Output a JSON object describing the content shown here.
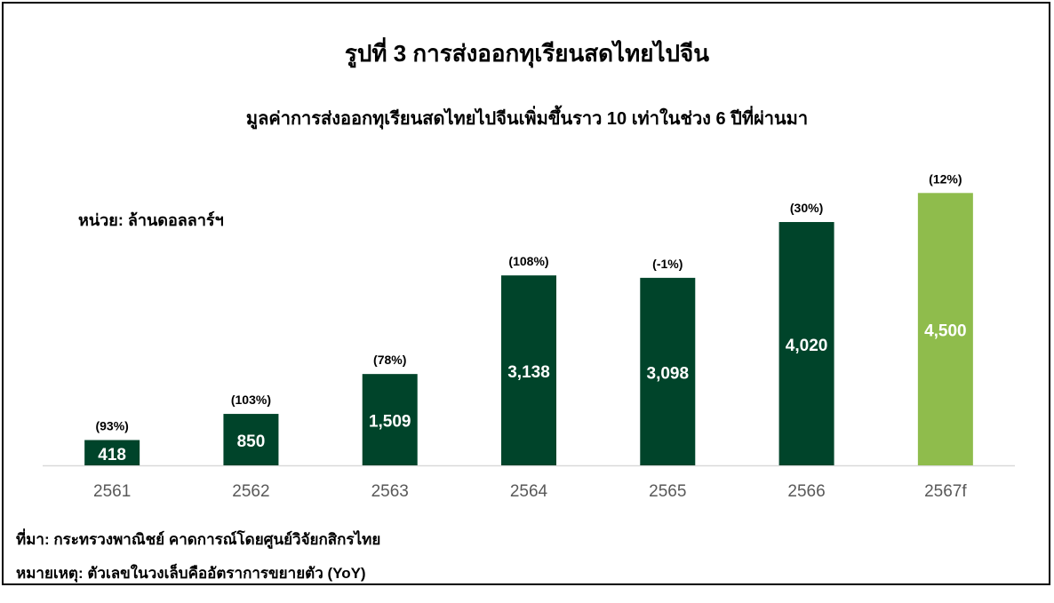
{
  "title": "รูปที่ 3 การส่งออกทุเรียนสดไทยไปจีน",
  "subtitle": "มูลค่าการส่งออกทุเรียนสดไทยไปจีนเพิ่มขึ้นราว  10 เท่าในช่วง 6 ปีที่ผ่านมา",
  "unit_label": "หน่วย: ล้านดอลลาร์ฯ",
  "source": "ที่มา: กระทรวงพาณิชย์ คาดการณ์โดยศูนย์วิจัยกสิกรไทย",
  "note": "หมายเหตุ: ตัวเลขในวงเล็บคืออัตราการขยายตัว (YoY)",
  "colors": {
    "actual_bar": "#00442a",
    "forecast_bar": "#8fbc4c",
    "axis_line": "#d9d9d9",
    "tick_text": "#595959",
    "value_text": "#ffffff",
    "growth_text": "#000000"
  },
  "chart_data": {
    "type": "bar",
    "title": "รูปที่ 3 การส่งออกทุเรียนสดไทยไปจีน",
    "xlabel": "",
    "ylabel": "หน่วย: ล้านดอลลาร์ฯ",
    "categories": [
      "2561",
      "2562",
      "2563",
      "2564",
      "2565",
      "2566",
      "2567f"
    ],
    "values": [
      418,
      850,
      1509,
      3138,
      3098,
      4020,
      4500
    ],
    "value_labels": [
      "418",
      "850",
      "1,509",
      "3,138",
      "3,098",
      "4,020",
      "4,500"
    ],
    "growth_labels": [
      "(93%)",
      "(103%)",
      "(78%)",
      "(108%)",
      "(-1%)",
      "(30%)",
      "(12%)"
    ],
    "forecast": [
      false,
      false,
      false,
      false,
      false,
      false,
      true
    ],
    "ylim": [
      0,
      5150
    ],
    "grid": false,
    "legend": "none"
  }
}
